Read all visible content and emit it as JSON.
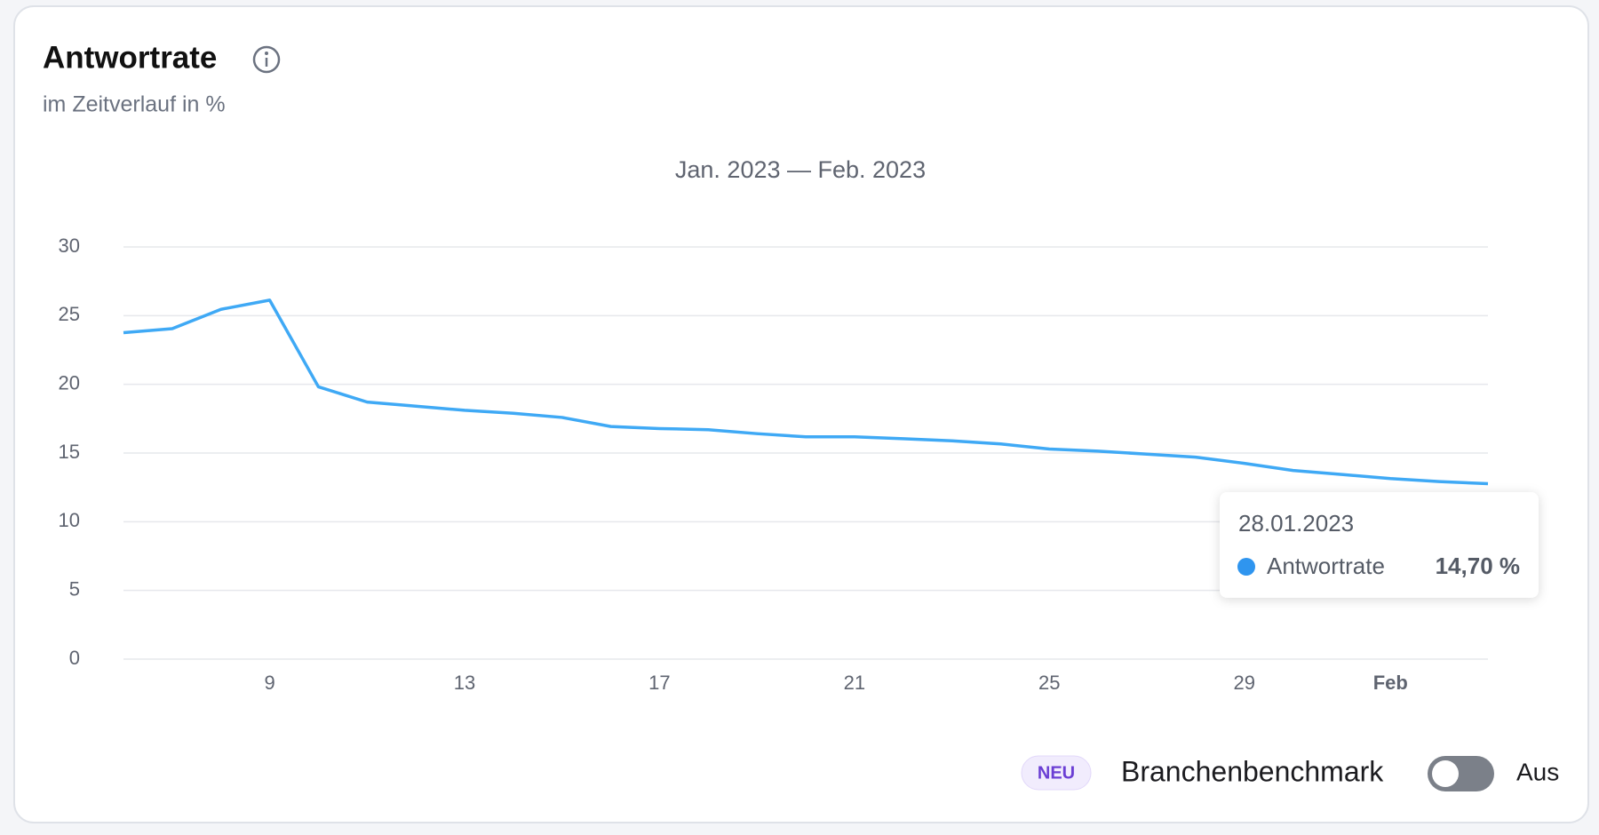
{
  "chart_data": {
    "type": "line",
    "title": "Antwortrate",
    "subtitle": "im Zeitverlauf in %",
    "period": "Jan. 2023 — Feb. 2023",
    "x": [
      "2023-01-06",
      "2023-01-07",
      "2023-01-08",
      "2023-01-09",
      "2023-01-10",
      "2023-01-11",
      "2023-01-12",
      "2023-01-13",
      "2023-01-14",
      "2023-01-15",
      "2023-01-16",
      "2023-01-17",
      "2023-01-18",
      "2023-01-19",
      "2023-01-20",
      "2023-01-21",
      "2023-01-22",
      "2023-01-23",
      "2023-01-24",
      "2023-01-25",
      "2023-01-26",
      "2023-01-27",
      "2023-01-28",
      "2023-01-29",
      "2023-01-30",
      "2023-01-31",
      "2023-02-01",
      "2023-02-02",
      "2023-02-03"
    ],
    "series": [
      {
        "name": "Antwortrate",
        "color": "#3fa9f5",
        "values": [
          23.76,
          24.05,
          25.46,
          26.13,
          19.82,
          18.71,
          18.41,
          18.11,
          17.89,
          17.59,
          16.93,
          16.78,
          16.7,
          16.41,
          16.18,
          16.18,
          16.04,
          15.89,
          15.66,
          15.29,
          15.14,
          14.92,
          14.7,
          14.25,
          13.73,
          13.44,
          13.14,
          12.92,
          12.77
        ]
      }
    ],
    "xlim": [
      "2023-01-06",
      "2023-02-03"
    ],
    "xticks": [
      {
        "value": "2023-01-09",
        "label": "9"
      },
      {
        "value": "2023-01-13",
        "label": "13"
      },
      {
        "value": "2023-01-17",
        "label": "17"
      },
      {
        "value": "2023-01-21",
        "label": "21"
      },
      {
        "value": "2023-01-25",
        "label": "25"
      },
      {
        "value": "2023-01-29",
        "label": "29"
      },
      {
        "value": "2023-02-01",
        "label": "Feb"
      }
    ],
    "ylim": [
      0,
      30
    ],
    "yticks": [
      0,
      5,
      10,
      15,
      20,
      25,
      30
    ],
    "grid": true,
    "tooltip": {
      "title": "28.01.2023",
      "value_label": "14,70 %",
      "dot_color": "#2f95ef"
    }
  },
  "controls": {
    "badge": "NEU",
    "label": "Branchenbenchmark",
    "state": "Aus"
  }
}
